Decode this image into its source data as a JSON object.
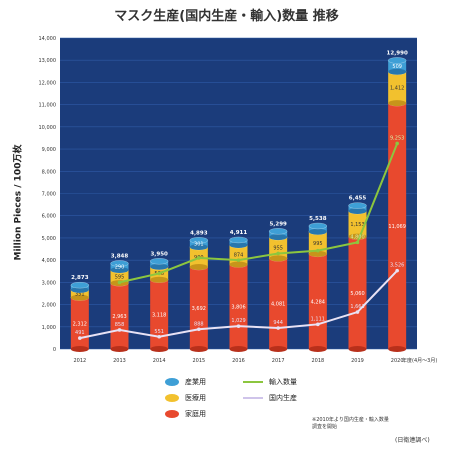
{
  "title": "マスク生産(国内生産・輸入)数量 推移",
  "ylabel": "Million Pieces / 100万枚",
  "x_unit_note": "年度(4月〜3月)",
  "note": "※2010年より国内生産・輸入数量調査を開始",
  "source": "(日衛連調べ)",
  "colors": {
    "plot_bg": "#1b3c7b",
    "household": "#e8492e",
    "medical": "#f2c12e",
    "industrial": "#3e9fd6",
    "line_total": "#8cc63f",
    "line_domestic": "#e8e2f5"
  },
  "legend": [
    {
      "key": "industrial",
      "label": "産業用",
      "icon": "blue-cylinder"
    },
    {
      "key": "medical",
      "label": "医療用",
      "icon": "yellow-cylinder"
    },
    {
      "key": "household",
      "label": "家庭用",
      "icon": "red-cylinder"
    },
    {
      "key": "line_total",
      "label": "輸入数量",
      "icon": "green-line"
    },
    {
      "key": "line_domestic",
      "label": "国内生産",
      "icon": "lavender-line"
    }
  ],
  "chart_data": {
    "type": "bar",
    "stacked": true,
    "categories": [
      "2012",
      "2013",
      "2014",
      "2015",
      "2016",
      "2017",
      "2018",
      "2019",
      "2020"
    ],
    "ylim": [
      0,
      14000
    ],
    "yticks": [
      0,
      1000,
      2000,
      3000,
      4000,
      5000,
      6000,
      7000,
      8000,
      9000,
      10000,
      11000,
      12000,
      13000,
      14000
    ],
    "totals": [
      2873,
      3848,
      3950,
      4893,
      4911,
      5299,
      5538,
      6455,
      12990
    ],
    "series": [
      {
        "name": "家庭用",
        "key": "household",
        "values": [
          2312,
          2963,
          3118,
          3692,
          3806,
          4081,
          4284,
          5060,
          11069
        ]
      },
      {
        "name": "医療用",
        "key": "medical",
        "values": [
          351,
          595,
          586,
          900,
          874,
          955,
          995,
          1153,
          1412
        ]
      },
      {
        "name": "産業用",
        "key": "industrial",
        "values": [
          210,
          290,
          246,
          301,
          229,
          263,
          259,
          242,
          509
        ]
      }
    ],
    "lines": [
      {
        "name": "輸入数量",
        "key": "line_total",
        "values": [
          null,
          3000,
          3400,
          4100,
          4000,
          4300,
          4427,
          4800,
          9253
        ]
      },
      {
        "name": "国内生産",
        "key": "line_domestic",
        "values": [
          491,
          858,
          551,
          888,
          1029,
          944,
          1111,
          1663,
          3526
        ]
      }
    ],
    "line_labels": [
      {
        "key": "line_total",
        "index": 7,
        "text": "4,800"
      },
      {
        "key": "line_total",
        "index": 8,
        "text": "9,253"
      },
      {
        "key": "line_domestic",
        "index": 0,
        "text": "491"
      },
      {
        "key": "line_domestic",
        "index": 1,
        "text": "858"
      },
      {
        "key": "line_domestic",
        "index": 2,
        "text": "551"
      },
      {
        "key": "line_domestic",
        "index": 3,
        "text": "888"
      },
      {
        "key": "line_domestic",
        "index": 4,
        "text": "1,029"
      },
      {
        "key": "line_domestic",
        "index": 5,
        "text": "944"
      },
      {
        "key": "line_domestic",
        "index": 6,
        "text": "1,111"
      },
      {
        "key": "line_domestic",
        "index": 7,
        "text": "1,663"
      },
      {
        "key": "line_domestic",
        "index": 8,
        "text": "3,526"
      }
    ]
  }
}
